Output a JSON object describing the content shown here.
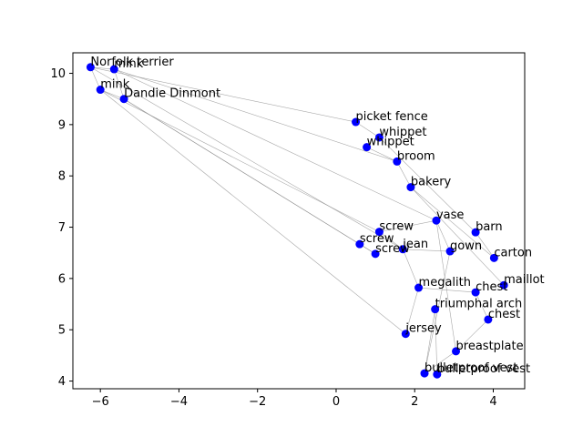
{
  "chart_data": {
    "type": "scatter",
    "title": "",
    "xlabel": "",
    "ylabel": "",
    "xlim": [
      -6.7,
      4.8
    ],
    "ylim": [
      3.85,
      10.4
    ],
    "xticks": [
      -6,
      -4,
      -2,
      0,
      2,
      4
    ],
    "yticks": [
      4,
      5,
      6,
      7,
      8,
      9,
      10
    ],
    "grid": false,
    "point_color": "#0000ff",
    "edge_color": "#8c8c8c",
    "points": [
      {
        "label": "Norfolk terrier",
        "x": -6.25,
        "y": 10.12
      },
      {
        "label": "mink",
        "x": -5.65,
        "y": 10.08
      },
      {
        "label": "mink",
        "x": -6.0,
        "y": 9.68
      },
      {
        "label": "Dandie Dinmont",
        "x": -5.4,
        "y": 9.5
      },
      {
        "label": "picket fence",
        "x": 0.5,
        "y": 9.05
      },
      {
        "label": "whippet",
        "x": 1.1,
        "y": 8.75
      },
      {
        "label": "whippet",
        "x": 0.78,
        "y": 8.56
      },
      {
        "label": "broom",
        "x": 1.55,
        "y": 8.28
      },
      {
        "label": "bakery",
        "x": 1.9,
        "y": 7.78
      },
      {
        "label": "vase",
        "x": 2.55,
        "y": 7.13
      },
      {
        "label": "barn",
        "x": 3.55,
        "y": 6.9
      },
      {
        "label": "screw",
        "x": 1.1,
        "y": 6.91
      },
      {
        "label": "screw",
        "x": 0.6,
        "y": 6.67
      },
      {
        "label": "jean",
        "x": 1.7,
        "y": 6.57
      },
      {
        "label": "screw",
        "x": 1.0,
        "y": 6.48
      },
      {
        "label": "gown",
        "x": 2.9,
        "y": 6.53
      },
      {
        "label": "carton",
        "x": 4.02,
        "y": 6.4
      },
      {
        "label": "maillot",
        "x": 4.27,
        "y": 5.87
      },
      {
        "label": "megalith",
        "x": 2.1,
        "y": 5.82
      },
      {
        "label": "chest",
        "x": 3.55,
        "y": 5.73
      },
      {
        "label": "triumphal arch",
        "x": 2.52,
        "y": 5.4
      },
      {
        "label": "chest",
        "x": 3.87,
        "y": 5.2
      },
      {
        "label": "jersey",
        "x": 1.77,
        "y": 4.92
      },
      {
        "label": "breastplate",
        "x": 3.05,
        "y": 4.58
      },
      {
        "label": "bulletproof vest",
        "x": 2.25,
        "y": 4.15
      },
      {
        "label": "bulletproof vest",
        "x": 2.57,
        "y": 4.13
      }
    ],
    "edges": [
      [
        0,
        1
      ],
      [
        0,
        2
      ],
      [
        0,
        4
      ],
      [
        0,
        13
      ],
      [
        1,
        3
      ],
      [
        1,
        7
      ],
      [
        1,
        9
      ],
      [
        2,
        3
      ],
      [
        2,
        11
      ],
      [
        2,
        22
      ],
      [
        3,
        12
      ],
      [
        3,
        14
      ],
      [
        4,
        5
      ],
      [
        5,
        10
      ],
      [
        6,
        7
      ],
      [
        7,
        8
      ],
      [
        8,
        16
      ],
      [
        8,
        17
      ],
      [
        9,
        15
      ],
      [
        9,
        23
      ],
      [
        10,
        16
      ],
      [
        11,
        13
      ],
      [
        11,
        9
      ],
      [
        12,
        14
      ],
      [
        13,
        15
      ],
      [
        13,
        18
      ],
      [
        18,
        22
      ],
      [
        18,
        19
      ],
      [
        19,
        21
      ],
      [
        20,
        25
      ],
      [
        20,
        24
      ],
      [
        21,
        23
      ],
      [
        15,
        24
      ],
      [
        23,
        24
      ]
    ]
  }
}
